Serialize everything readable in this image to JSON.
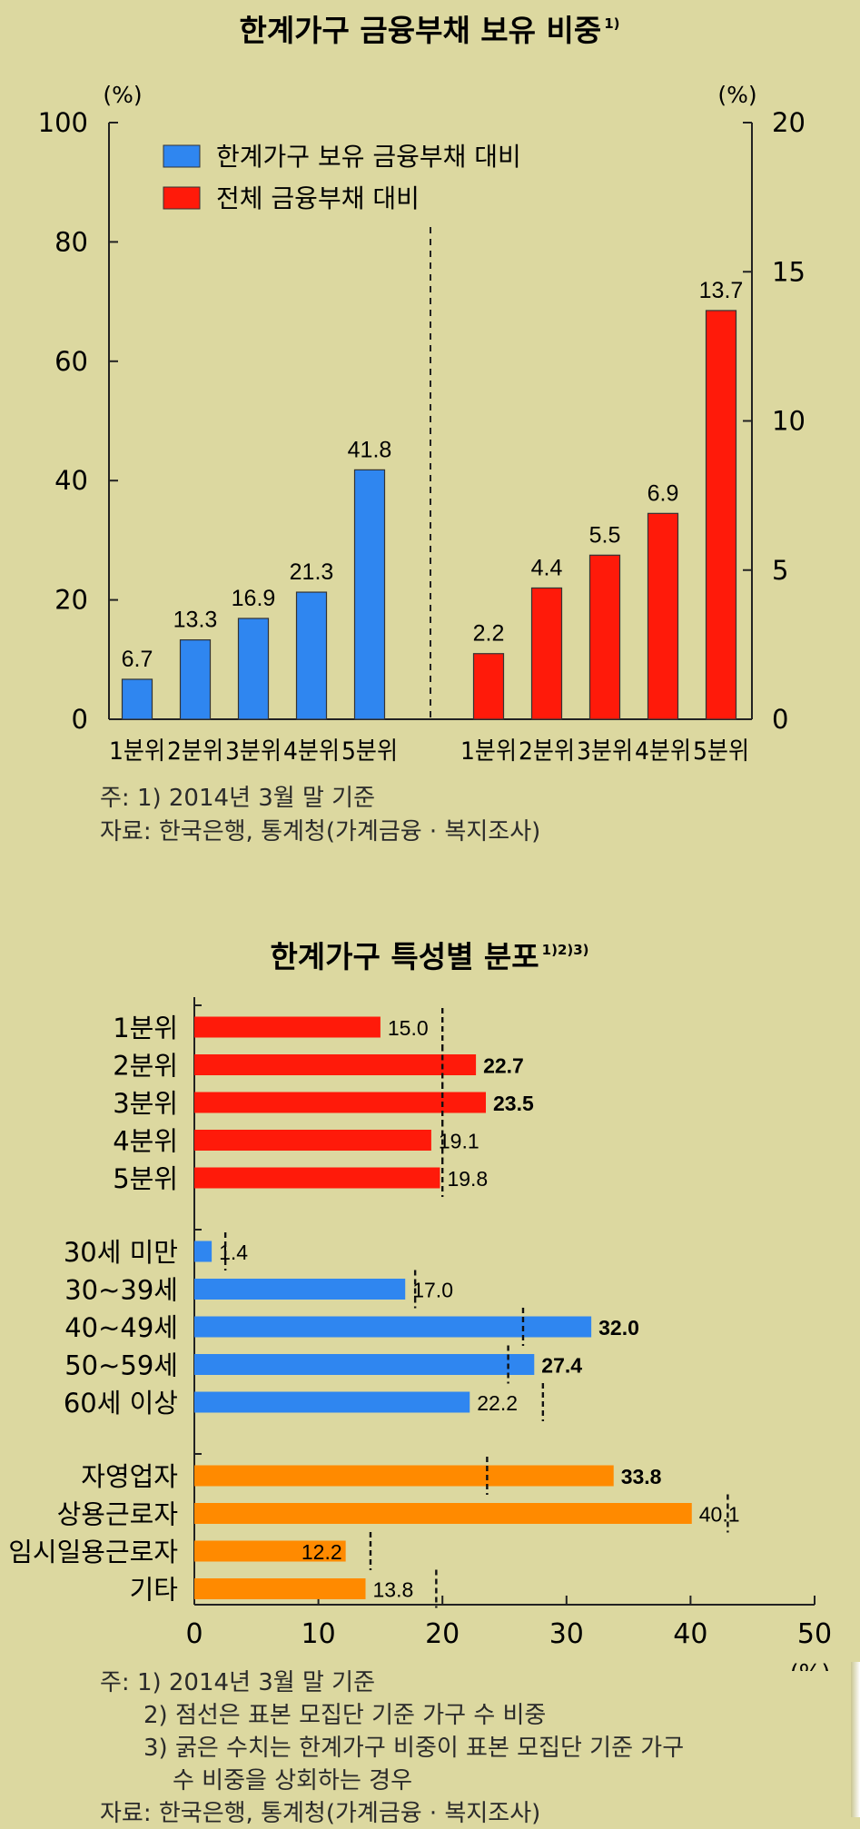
{
  "colors": {
    "background": "#dcd8a0",
    "blue": "#2f86f0",
    "red": "#ff1a0a",
    "orange": "#ff8a00"
  },
  "chart_data": [
    {
      "type": "bar",
      "title": "한계가구 금융부채 보유 비중",
      "title_sup": "1)",
      "left_axis": {
        "unit": "(%)",
        "ylim": [
          0,
          100
        ],
        "ticks": [
          0,
          20,
          40,
          60,
          80,
          100
        ]
      },
      "right_axis": {
        "unit": "(%)",
        "ylim": [
          0,
          20
        ],
        "ticks": [
          0,
          5,
          10,
          15,
          20
        ]
      },
      "legend_position": "top-left",
      "series": [
        {
          "name": "한계가구 보유 금융부채 대비",
          "axis": "left",
          "color": "#2f86f0",
          "categories": [
            "1분위",
            "2분위",
            "3분위",
            "4분위",
            "5분위"
          ],
          "values": [
            6.7,
            13.3,
            16.9,
            21.3,
            41.8
          ]
        },
        {
          "name": "전체 금융부채 대비",
          "axis": "right",
          "color": "#ff1a0a",
          "categories": [
            "1분위",
            "2분위",
            "3분위",
            "4분위",
            "5분위"
          ],
          "values": [
            2.2,
            4.4,
            5.5,
            6.9,
            13.7
          ]
        }
      ],
      "notes": [
        "주: 1) 2014년 3월 말 기준",
        "자료: 한국은행, 통계청(가계금융 · 복지조사)"
      ]
    },
    {
      "type": "bar",
      "orientation": "horizontal",
      "title": "한계가구 특성별 분포",
      "title_sup": "1)2)3)",
      "xlim": [
        0,
        50
      ],
      "x_ticks": [
        0,
        10,
        20,
        30,
        40,
        50
      ],
      "xunit": "(%)",
      "groups": [
        {
          "color": "#ff1a0a",
          "items": [
            {
              "label": "1분위",
              "value": 15.0,
              "sample_ref": 20.0,
              "bold": false
            },
            {
              "label": "2분위",
              "value": 22.7,
              "sample_ref": 20.0,
              "bold": true
            },
            {
              "label": "3분위",
              "value": 23.5,
              "sample_ref": 20.0,
              "bold": true
            },
            {
              "label": "4분위",
              "value": 19.1,
              "sample_ref": 20.0,
              "bold": false
            },
            {
              "label": "5분위",
              "value": 19.8,
              "sample_ref": 20.0,
              "bold": false
            }
          ]
        },
        {
          "color": "#2f86f0",
          "items": [
            {
              "label": "30세 미만",
              "value": 1.4,
              "sample_ref": 2.5,
              "bold": false
            },
            {
              "label": "30~39세",
              "value": 17.0,
              "sample_ref": 17.8,
              "bold": false
            },
            {
              "label": "40~49세",
              "value": 32.0,
              "sample_ref": 26.5,
              "bold": true
            },
            {
              "label": "50~59세",
              "value": 27.4,
              "sample_ref": 25.3,
              "bold": true
            },
            {
              "label": "60세 이상",
              "value": 22.2,
              "sample_ref": 28.1,
              "bold": false
            }
          ]
        },
        {
          "color": "#ff8a00",
          "items": [
            {
              "label": "자영업자",
              "value": 33.8,
              "sample_ref": 23.6,
              "bold": true
            },
            {
              "label": "상용근로자",
              "value": 40.1,
              "sample_ref": 43.0,
              "bold": false
            },
            {
              "label": "임시일용근로자",
              "value": 12.2,
              "sample_ref": 14.2,
              "bold": false
            },
            {
              "label": "기타",
              "value": 13.8,
              "sample_ref": 19.5,
              "bold": false
            }
          ]
        }
      ],
      "notes": [
        "주: 1) 2014년 3월 말 기준",
        "2) 점선은 표본 모집단 기준 가구 수 비중",
        "3) 굵은 수치는 한계가구 비중이 표본 모집단 기준 가구",
        "수 비중을 상회하는 경우",
        "자료: 한국은행, 통계청(가계금융 · 복지조사)"
      ]
    }
  ]
}
